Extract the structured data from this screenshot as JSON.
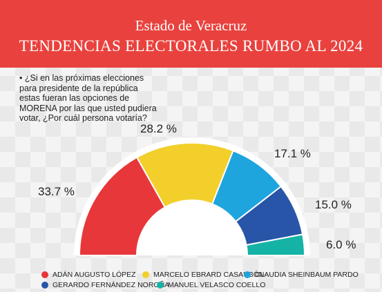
{
  "header": {
    "line1": "Estado de Veracruz",
    "line2": "TENDENCIAS ELECTORALES RUMBO AL 2024"
  },
  "question": "• ¿Si en las próximas elecciones\npara  presidente de la república\nestas fueran las opciones de\nMORENA por las que usted pudiera\nvotar, ¿Por cuál persona  votaría?",
  "colors": {
    "red": "#e8373a",
    "yellow": "#f2cf2a",
    "light_blue": "#1ea5de",
    "dark_blue": "#2855a8",
    "teal": "#15b3a5",
    "banner": "#e9423e"
  },
  "chart_data": {
    "type": "pie",
    "variant": "semicircle-donut",
    "slices": [
      {
        "label": "ADÁN AUGUSTO LÓPEZ",
        "value": 33.7,
        "value_label": "33.7 %",
        "color": "#e8373a"
      },
      {
        "label": "MARCELO EBRARD CASAUBÓN",
        "value": 28.2,
        "value_label": "28.2 %",
        "color": "#f2cf2a"
      },
      {
        "label": "CLAUDIA SHEINBAUM PARDO",
        "value": 17.1,
        "value_label": "17.1 %",
        "color": "#1ea5de"
      },
      {
        "label": "GERARDO FERNÁNDEZ NOROÑA",
        "value": 15.0,
        "value_label": "15.0 %",
        "color": "#2855a8"
      },
      {
        "label": "MANUEL VELASCO COELLO",
        "value": 6.0,
        "value_label": "6.0 %",
        "color": "#15b3a5"
      }
    ],
    "legend_position": "bottom"
  }
}
